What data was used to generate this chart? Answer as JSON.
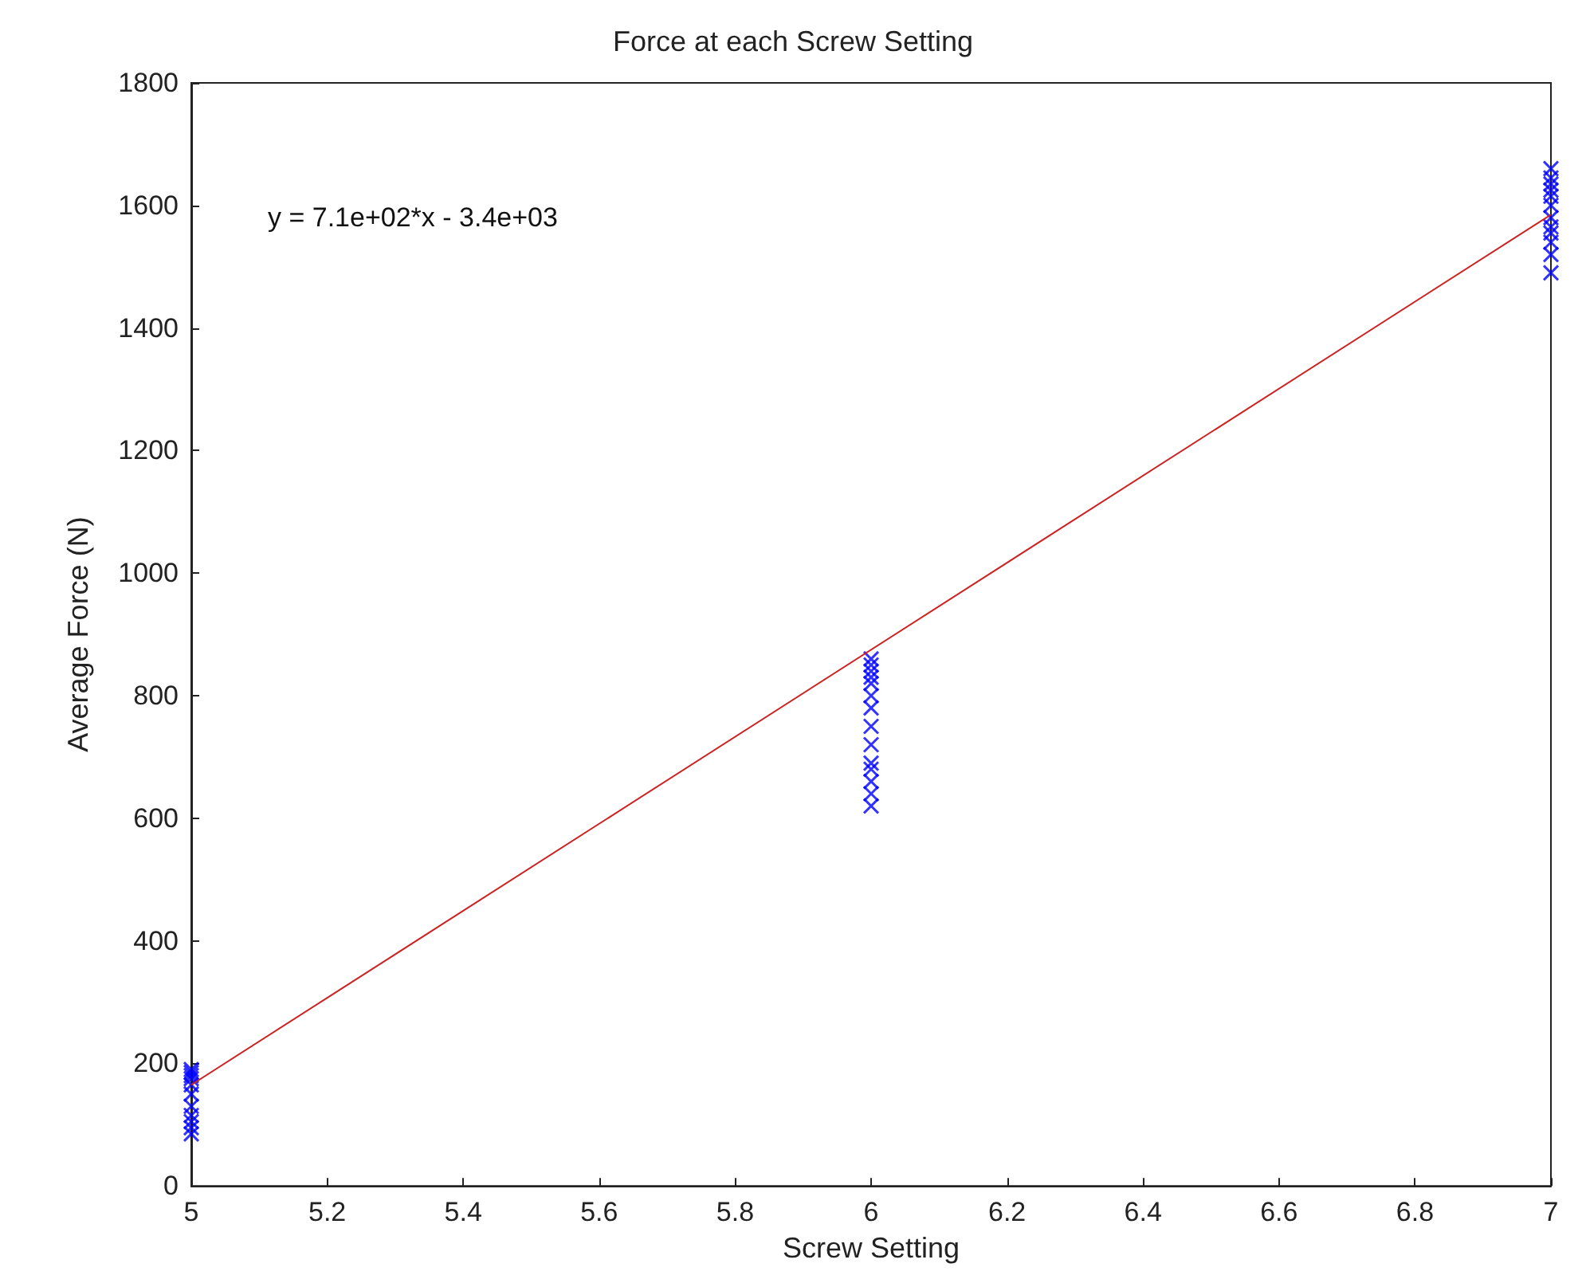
{
  "chart_data": {
    "type": "scatter",
    "title": "Force at each Screw Setting",
    "xlabel": "Screw Setting",
    "ylabel": "Average Force (N)",
    "annotations": [
      "y = 7.1e+02*x - 3.4e+03"
    ],
    "marker": "cross",
    "grid": false,
    "xlim": [
      5,
      7
    ],
    "xticks": [
      5,
      5.2,
      5.4,
      5.6,
      5.8,
      6,
      6.2,
      6.4,
      6.6,
      6.8,
      7
    ],
    "ylim": [
      0,
      1800
    ],
    "yticks": [
      0,
      200,
      400,
      600,
      800,
      1000,
      1200,
      1400,
      1600,
      1800
    ],
    "series": [
      {
        "color": "#0000ff",
        "x": [
          5,
          5,
          5,
          5,
          5,
          5,
          5,
          5,
          5,
          5,
          5,
          6,
          6,
          6,
          6,
          6,
          6,
          6,
          6,
          6,
          6,
          6,
          6,
          6,
          6,
          7,
          7,
          7,
          7,
          7,
          7,
          7,
          7,
          7,
          7,
          7,
          7
        ],
        "values": [
          85,
          95,
          105,
          115,
          130,
          150,
          165,
          175,
          180,
          185,
          190,
          620,
          640,
          660,
          680,
          690,
          720,
          750,
          780,
          800,
          820,
          830,
          840,
          850,
          860,
          1490,
          1520,
          1540,
          1555,
          1565,
          1580,
          1600,
          1615,
          1625,
          1635,
          1645,
          1660
        ]
      },
      {
        "type": "line",
        "color": "#cc2222",
        "marker": "none",
        "x": [
          5,
          7
        ],
        "values": [
          165,
          1585
        ]
      }
    ]
  }
}
